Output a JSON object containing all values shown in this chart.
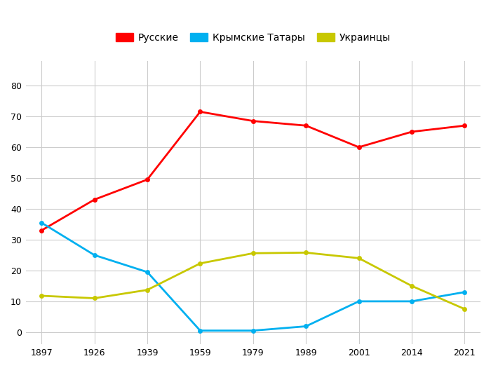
{
  "years": [
    1897,
    1926,
    1939,
    1959,
    1979,
    1989,
    2001,
    2014,
    2021
  ],
  "russians": [
    33,
    43,
    49.5,
    71.5,
    68.5,
    67,
    60,
    65,
    67
  ],
  "crimean_tatars": [
    35.5,
    25,
    19.5,
    0.5,
    0.5,
    1.9,
    10,
    10,
    13
  ],
  "ukrainians": [
    11.8,
    11,
    13.7,
    22.3,
    25.6,
    25.8,
    24,
    15,
    7.5
  ],
  "series_colors": {
    "russians": "#ff0000",
    "crimean_tatars": "#00b0f0",
    "ukrainians": "#c8c800"
  },
  "legend_labels": {
    "russians": "Русские",
    "crimean_tatars": "Крымские Татары",
    "ukrainians": "Украинцы"
  },
  "ylim": [
    -4,
    88
  ],
  "yticks": [
    0,
    10,
    20,
    30,
    40,
    50,
    60,
    70,
    80
  ],
  "background_color": "#ffffff",
  "grid_color": "#cccccc",
  "linewidth": 2.0,
  "markersize": 5,
  "tick_fontsize": 9,
  "legend_fontsize": 10
}
